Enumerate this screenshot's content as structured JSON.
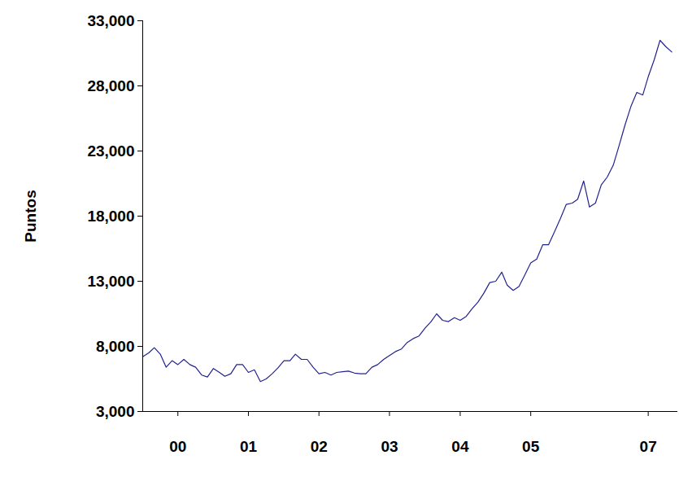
{
  "chart_data": {
    "type": "line",
    "y_label": "Puntos",
    "color": "#23238e",
    "grid": false,
    "xlim": [
      "2000-01",
      "2007-08"
    ],
    "xticks": [
      {
        "value": "2000-07",
        "label": "00"
      },
      {
        "value": "2001-07",
        "label": "01"
      },
      {
        "value": "2002-07",
        "label": "02"
      },
      {
        "value": "2003-07",
        "label": "03"
      },
      {
        "value": "2004-07",
        "label": "04"
      },
      {
        "value": "2005-07",
        "label": "05"
      },
      {
        "value": "2007-03",
        "label": "07"
      }
    ],
    "ylim": [
      3000,
      33000
    ],
    "yticks": [
      {
        "value": 3000,
        "label": "3,000"
      },
      {
        "value": 8000,
        "label": "8,000"
      },
      {
        "value": 13000,
        "label": "13,000"
      },
      {
        "value": 18000,
        "label": "18,000"
      },
      {
        "value": 23000,
        "label": "23,000"
      },
      {
        "value": 28000,
        "label": "28,000"
      },
      {
        "value": 33000,
        "label": "33,000"
      }
    ],
    "x": [
      "2000-01",
      "2000-02",
      "2000-03",
      "2000-04",
      "2000-05",
      "2000-06",
      "2000-07",
      "2000-08",
      "2000-09",
      "2000-10",
      "2000-11",
      "2000-12",
      "2001-01",
      "2001-02",
      "2001-03",
      "2001-04",
      "2001-05",
      "2001-06",
      "2001-07",
      "2001-08",
      "2001-09",
      "2001-10",
      "2001-11",
      "2001-12",
      "2002-01",
      "2002-02",
      "2002-03",
      "2002-04",
      "2002-05",
      "2002-06",
      "2002-07",
      "2002-08",
      "2002-09",
      "2002-10",
      "2002-11",
      "2002-12",
      "2003-01",
      "2003-02",
      "2003-03",
      "2003-04",
      "2003-05",
      "2003-06",
      "2003-07",
      "2003-08",
      "2003-09",
      "2003-10",
      "2003-11",
      "2003-12",
      "2004-01",
      "2004-02",
      "2004-03",
      "2004-04",
      "2004-05",
      "2004-06",
      "2004-07",
      "2004-08",
      "2004-09",
      "2004-10",
      "2004-11",
      "2004-12",
      "2005-01",
      "2005-02",
      "2005-03",
      "2005-04",
      "2005-05",
      "2005-06",
      "2005-07",
      "2005-08",
      "2005-09",
      "2005-10",
      "2005-11",
      "2005-12",
      "2006-01",
      "2006-02",
      "2006-03",
      "2006-04",
      "2006-05",
      "2006-06",
      "2006-07",
      "2006-08",
      "2006-09",
      "2006-10",
      "2006-11",
      "2006-12",
      "2007-01",
      "2007-02",
      "2007-03",
      "2007-04",
      "2007-05",
      "2007-06",
      "2007-07"
    ],
    "values": [
      7200,
      7500,
      7900,
      7400,
      6400,
      6900,
      6600,
      7000,
      6600,
      6400,
      5800,
      5650,
      6300,
      6000,
      5700,
      5900,
      6600,
      6600,
      6000,
      6200,
      5300,
      5500,
      5900,
      6350,
      6900,
      6900,
      7400,
      7000,
      7000,
      6400,
      5900,
      6000,
      5800,
      6000,
      6050,
      6100,
      5950,
      5900,
      5900,
      6400,
      6600,
      7000,
      7300,
      7600,
      7800,
      8300,
      8600,
      8800,
      9400,
      9900,
      10500,
      10000,
      9900,
      10200,
      10000,
      10300,
      10900,
      11400,
      12100,
      12900,
      13000,
      13700,
      12700,
      12300,
      12600,
      13500,
      14400,
      14700,
      15800,
      15800,
      16800,
      17800,
      18900,
      19000,
      19300,
      20700,
      18700,
      19000,
      20400,
      21000,
      21900,
      23400,
      25000,
      26400,
      27500,
      27300,
      28700,
      30000,
      31500,
      31000,
      30600
    ]
  }
}
